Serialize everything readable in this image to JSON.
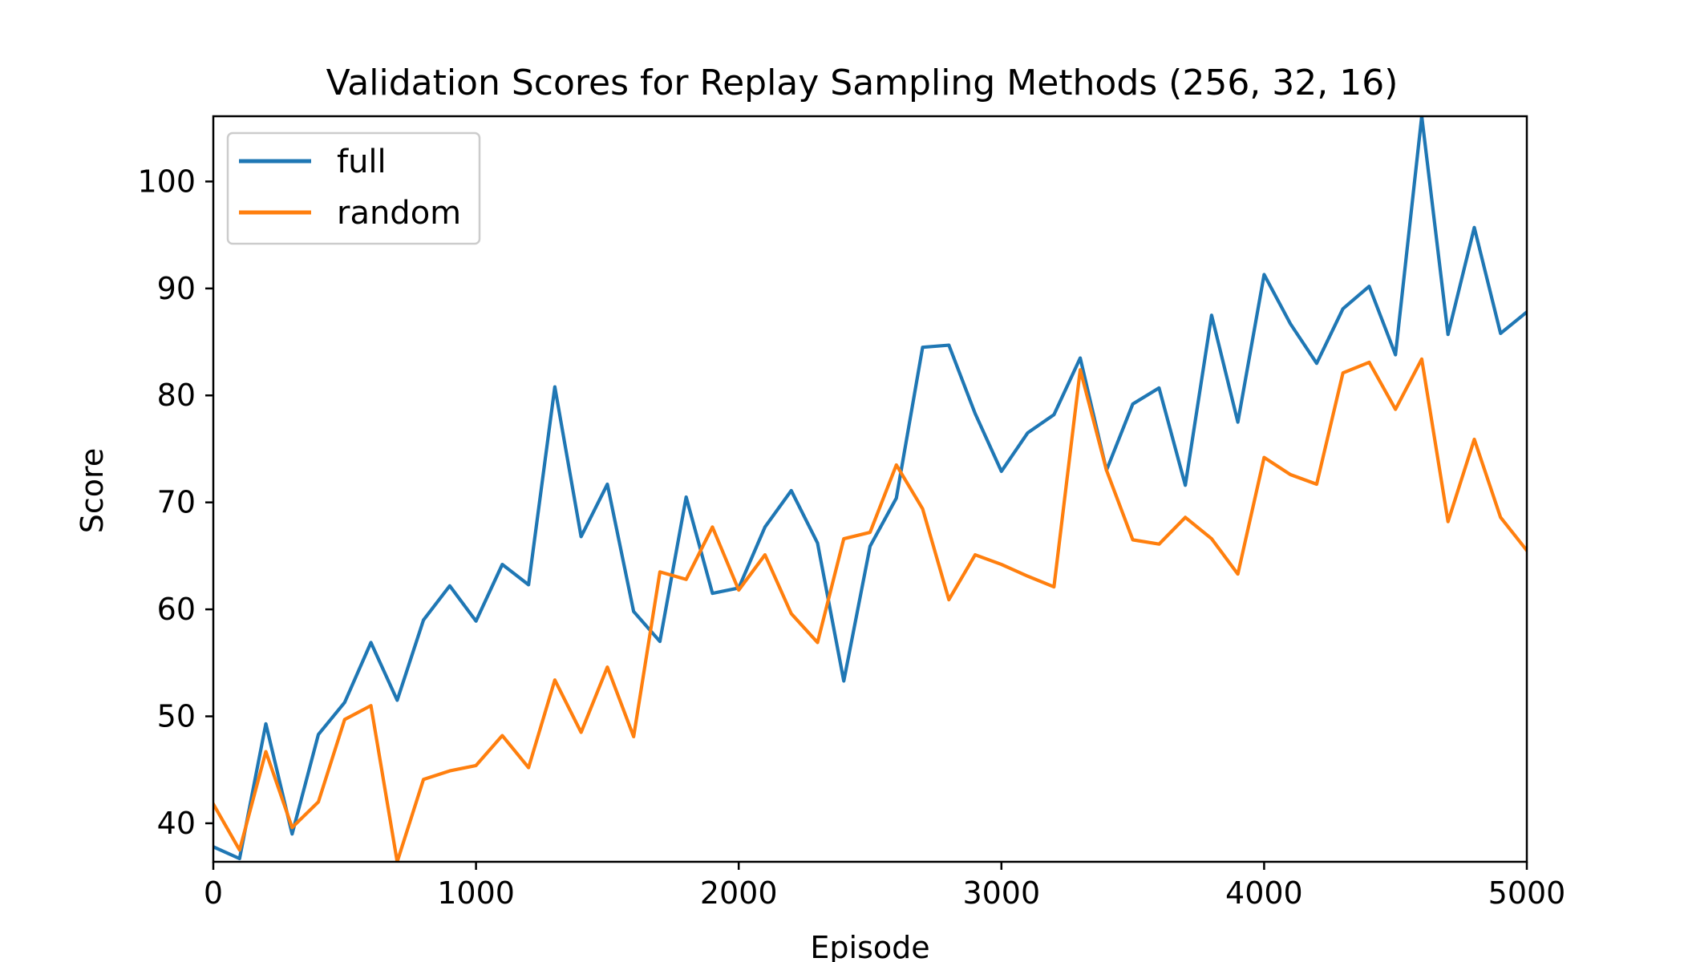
{
  "chart_data": {
    "type": "line",
    "title": "Validation Scores for Replay Sampling Methods (256, 32, 16)",
    "xlabel": "Episode",
    "ylabel": "Score",
    "xlim": [
      0,
      5000
    ],
    "ylim": [
      36.4,
      106.1
    ],
    "xticks": [
      0,
      1000,
      2000,
      3000,
      4000,
      5000
    ],
    "yticks": [
      40,
      50,
      60,
      70,
      80,
      90,
      100
    ],
    "grid": false,
    "legend_position": "top-left",
    "x": [
      0,
      100,
      200,
      300,
      400,
      500,
      600,
      700,
      800,
      900,
      1000,
      1100,
      1200,
      1300,
      1400,
      1500,
      1600,
      1700,
      1800,
      1900,
      2000,
      2100,
      2200,
      2300,
      2400,
      2500,
      2600,
      2700,
      2800,
      2900,
      3000,
      3100,
      3200,
      3300,
      3400,
      3500,
      3600,
      3700,
      3800,
      3900,
      4000,
      4100,
      4200,
      4300,
      4400,
      4500,
      4600,
      4700,
      4800,
      4900,
      5000
    ],
    "series": [
      {
        "name": "full",
        "color": "#1f77b4",
        "values": [
          37.8,
          36.7,
          49.3,
          39.0,
          48.3,
          51.3,
          56.9,
          51.5,
          59.0,
          62.2,
          58.9,
          64.2,
          62.3,
          80.8,
          66.8,
          71.7,
          59.8,
          57.0,
          70.5,
          61.5,
          62.0,
          67.7,
          71.1,
          66.2,
          53.3,
          65.9,
          70.4,
          84.5,
          84.7,
          78.3,
          72.9,
          76.5,
          78.2,
          83.5,
          73.0,
          79.2,
          80.7,
          71.6,
          87.5,
          77.5,
          91.3,
          86.7,
          83.0,
          88.1,
          90.2,
          83.8,
          106.1,
          85.7,
          95.7,
          85.8,
          87.8
        ]
      },
      {
        "name": "random",
        "color": "#ff7f0e",
        "values": [
          41.8,
          37.5,
          46.7,
          39.6,
          42.0,
          49.7,
          51.0,
          36.4,
          44.1,
          44.9,
          45.4,
          48.2,
          45.2,
          53.4,
          48.5,
          54.6,
          48.1,
          63.5,
          62.8,
          67.7,
          61.8,
          65.1,
          59.6,
          56.9,
          66.6,
          67.2,
          73.5,
          69.4,
          60.9,
          65.1,
          64.2,
          63.1,
          62.1,
          82.4,
          73.0,
          66.5,
          66.1,
          68.6,
          66.6,
          63.3,
          74.2,
          72.6,
          71.7,
          82.1,
          83.1,
          78.7,
          83.4,
          68.2,
          75.9,
          68.6,
          65.5
        ]
      }
    ]
  }
}
